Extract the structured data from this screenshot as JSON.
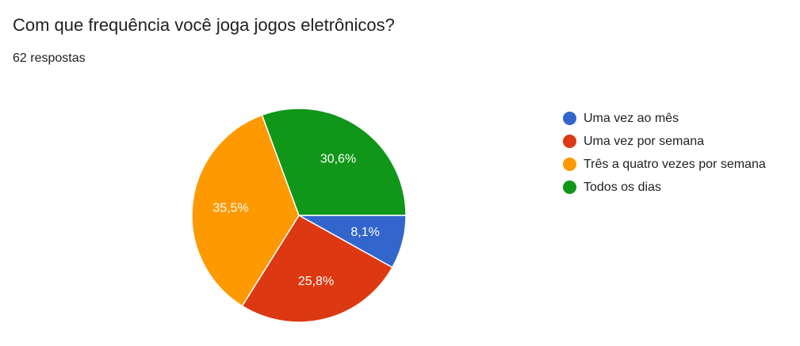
{
  "question": {
    "title": "Com que frequência você joga jogos eletrônicos?",
    "response_count": "62 respostas"
  },
  "chart_data": {
    "type": "pie",
    "categories": [
      "Uma vez ao mês",
      "Uma vez por semana",
      "Três a quatro vezes por semana",
      "Todos os dias"
    ],
    "values": [
      8.1,
      25.8,
      35.5,
      30.6
    ],
    "data_labels": [
      "8,1%",
      "25,8%",
      "35,5%",
      "30,6%"
    ],
    "colors": [
      "#3366cc",
      "#dc3912",
      "#ff9900",
      "#109618"
    ],
    "legend_position": "right"
  }
}
